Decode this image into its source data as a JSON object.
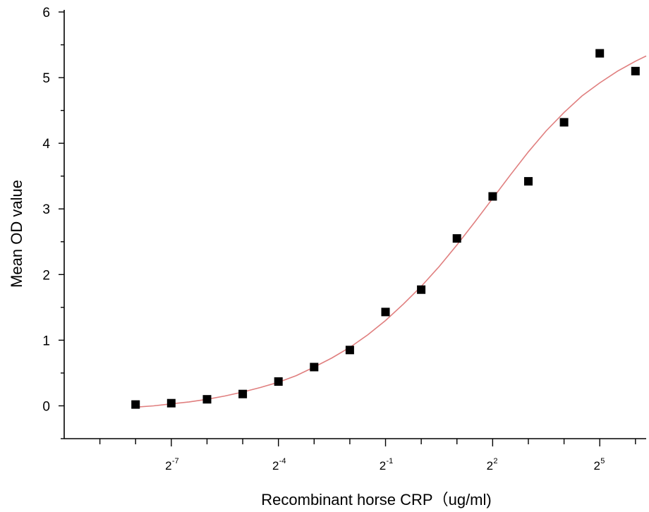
{
  "chart_data": {
    "type": "scatter",
    "title": "",
    "xlabel": "Recombinant horse  CRP（ug/ml)",
    "ylabel": "Mean OD value",
    "x_scale": "log2",
    "xlim_exponent": [
      -10,
      6.3
    ],
    "ylim": [
      -0.5,
      6
    ],
    "y_ticks": [
      0,
      1,
      2,
      3,
      4,
      5,
      6
    ],
    "x_tick_labels": [
      {
        "base": "2",
        "exp": "-7",
        "value": -7
      },
      {
        "base": "2",
        "exp": "-4",
        "value": -4
      },
      {
        "base": "2",
        "exp": "-1",
        "value": -1
      },
      {
        "base": "2",
        "exp": "2",
        "value": 2
      },
      {
        "base": "2",
        "exp": "5",
        "value": 5
      }
    ],
    "series": [
      {
        "points": [
          {
            "x_exp": -8.0,
            "y": 0.02
          },
          {
            "x_exp": -7.0,
            "y": 0.04
          },
          {
            "x_exp": -6.0,
            "y": 0.1
          },
          {
            "x_exp": -5.0,
            "y": 0.18
          },
          {
            "x_exp": -4.0,
            "y": 0.37
          },
          {
            "x_exp": -3.0,
            "y": 0.59
          },
          {
            "x_exp": -2.0,
            "y": 0.85
          },
          {
            "x_exp": -1.0,
            "y": 1.43
          },
          {
            "x_exp": 0.0,
            "y": 1.77
          },
          {
            "x_exp": 1.0,
            "y": 2.55
          },
          {
            "x_exp": 2.0,
            "y": 3.19
          },
          {
            "x_exp": 3.0,
            "y": 3.42
          },
          {
            "x_exp": 4.0,
            "y": 4.32
          },
          {
            "x_exp": 5.0,
            "y": 5.37
          },
          {
            "x_exp": 6.0,
            "y": 5.1
          }
        ],
        "color": "#000000"
      }
    ],
    "fit_curve": {
      "points": [
        {
          "x_exp": -8.0,
          "y": -0.02
        },
        {
          "x_exp": -7.5,
          "y": 0.0
        },
        {
          "x_exp": -7.0,
          "y": 0.03
        },
        {
          "x_exp": -6.5,
          "y": 0.06
        },
        {
          "x_exp": -6.0,
          "y": 0.1
        },
        {
          "x_exp": -5.5,
          "y": 0.15
        },
        {
          "x_exp": -5.0,
          "y": 0.21
        },
        {
          "x_exp": -4.5,
          "y": 0.28
        },
        {
          "x_exp": -4.0,
          "y": 0.36
        },
        {
          "x_exp": -3.5,
          "y": 0.46
        },
        {
          "x_exp": -3.0,
          "y": 0.59
        },
        {
          "x_exp": -2.5,
          "y": 0.73
        },
        {
          "x_exp": -2.0,
          "y": 0.89
        },
        {
          "x_exp": -1.5,
          "y": 1.08
        },
        {
          "x_exp": -1.0,
          "y": 1.3
        },
        {
          "x_exp": -0.5,
          "y": 1.55
        },
        {
          "x_exp": 0.0,
          "y": 1.82
        },
        {
          "x_exp": 0.5,
          "y": 2.12
        },
        {
          "x_exp": 1.0,
          "y": 2.45
        },
        {
          "x_exp": 1.5,
          "y": 2.8
        },
        {
          "x_exp": 2.0,
          "y": 3.16
        },
        {
          "x_exp": 2.5,
          "y": 3.52
        },
        {
          "x_exp": 3.0,
          "y": 3.87
        },
        {
          "x_exp": 3.5,
          "y": 4.19
        },
        {
          "x_exp": 4.0,
          "y": 4.47
        },
        {
          "x_exp": 4.5,
          "y": 4.72
        },
        {
          "x_exp": 5.0,
          "y": 4.92
        },
        {
          "x_exp": 5.5,
          "y": 5.1
        },
        {
          "x_exp": 6.0,
          "y": 5.25
        },
        {
          "x_exp": 6.3,
          "y": 5.33
        }
      ],
      "color": "#e07f7f"
    },
    "grid": false,
    "legend": "none"
  }
}
